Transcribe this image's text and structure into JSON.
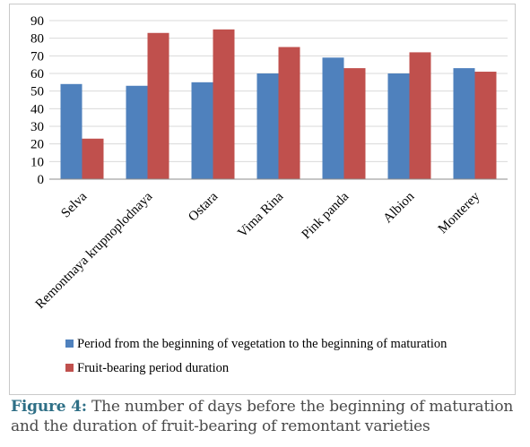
{
  "caption": {
    "label": "Figure 4:",
    "text": " The number of days before the beginning of maturation and the duration of fruit-bearing of remontant varieties"
  },
  "chart_data": {
    "type": "bar",
    "categories": [
      "Selva",
      "Remontnaya krupnoplodnaya",
      "Ostara",
      "Vima Rina",
      "Pink panda",
      "Albion",
      "Monterey"
    ],
    "series": [
      {
        "name": "Period from the beginning of vegetation to the beginning of maturation",
        "color": "#4f81bd",
        "values": [
          54,
          53,
          55,
          60,
          69,
          60,
          63
        ]
      },
      {
        "name": "Fruit-bearing period duration",
        "color": "#c0504d",
        "values": [
          23,
          83,
          85,
          75,
          63,
          72,
          61
        ]
      }
    ],
    "yticks": [
      "0",
      "10",
      "20",
      "30",
      "40",
      "50",
      "60",
      "70",
      "80",
      "90"
    ],
    "ylim": [
      0,
      90
    ],
    "grid": true,
    "legend_position": "bottom"
  }
}
